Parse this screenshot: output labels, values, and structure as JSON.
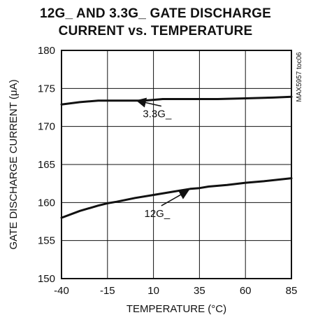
{
  "chart_data": {
    "type": "line",
    "title_line1": "12G_ AND 3.3G_ GATE DISCHARGE",
    "title_line2": "CURRENT vs. TEMPERATURE",
    "xlabel": "TEMPERATURE (°C)",
    "ylabel": "GATE DISCHARGE CURRENT (μA)",
    "xlim": [
      -40,
      85
    ],
    "ylim": [
      150,
      180
    ],
    "xticks": [
      -40,
      -15,
      10,
      35,
      60,
      85
    ],
    "yticks": [
      150,
      155,
      160,
      165,
      170,
      175,
      180
    ],
    "grid": true,
    "code_label": "MAX5957 toc06",
    "series": [
      {
        "name": "3.3G_",
        "x": [
          -40,
          -30,
          -20,
          -10,
          0,
          5,
          10,
          15,
          25,
          35,
          45,
          60,
          75,
          85
        ],
        "y": [
          172.9,
          173.2,
          173.4,
          173.4,
          173.4,
          173.4,
          173.5,
          173.6,
          173.6,
          173.6,
          173.6,
          173.7,
          173.8,
          173.9
        ]
      },
      {
        "name": "12G_",
        "x": [
          -40,
          -30,
          -20,
          -15,
          -10,
          0,
          10,
          20,
          30,
          35,
          40,
          50,
          60,
          70,
          85
        ],
        "y": [
          158.0,
          158.9,
          159.6,
          159.9,
          160.1,
          160.6,
          161.0,
          161.4,
          161.8,
          161.9,
          162.1,
          162.3,
          162.6,
          162.8,
          163.2
        ]
      }
    ],
    "annotations": [
      {
        "text": "3.3G_",
        "series": "3.3G_",
        "arrow_x": 1,
        "arrow_y": 173.4,
        "label_x": 12,
        "label_y": 171.2
      },
      {
        "text": "12G_",
        "series": "12G_",
        "arrow_x": 29,
        "arrow_y": 161.6,
        "label_x": 12,
        "label_y": 158.1
      }
    ]
  }
}
